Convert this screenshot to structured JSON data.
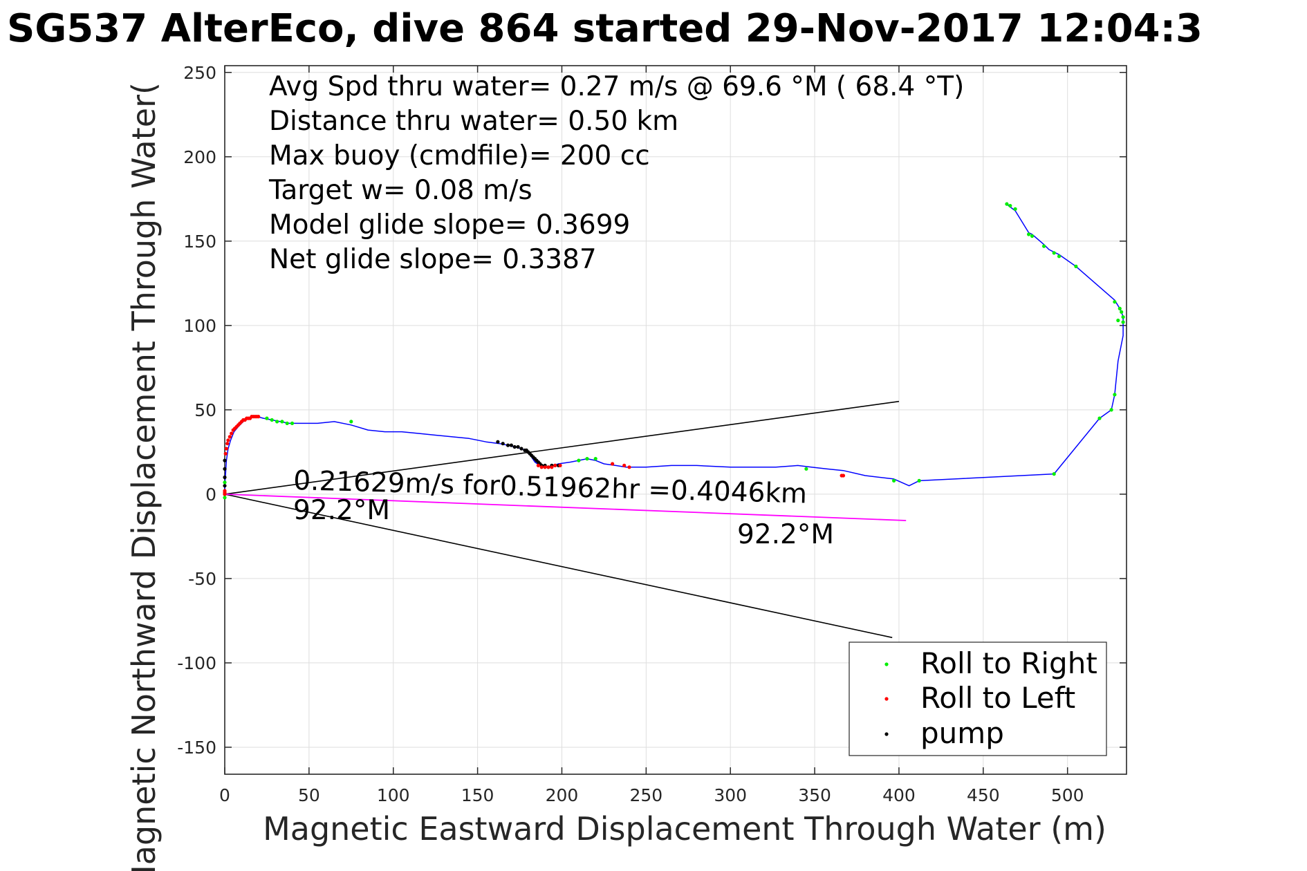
{
  "chart_data": {
    "type": "line",
    "title": "SG537 AlterEco, dive 864 started 29-Nov-2017 12:04:3",
    "xlabel": "Magnetic Eastward Displacement Through Water (m)",
    "ylabel": "Magnetic Northward Displacement Through Water(",
    "xlim": [
      0,
      535
    ],
    "ylim": [
      -166,
      254
    ],
    "xticks": [
      0,
      50,
      100,
      150,
      200,
      250,
      300,
      350,
      400,
      450,
      500
    ],
    "yticks": [
      -150,
      -100,
      -50,
      0,
      50,
      100,
      150,
      200,
      250
    ],
    "grid": true,
    "legend_position": "bottom-right",
    "info_lines": [
      "Avg Spd thru water=  0.27 m/s @  69.6 °M ( 68.4 °T)",
      "Distance thru water=  0.50 km",
      "Max buoy (cmdfile)= 200 cc",
      "Target w= 0.08 m/s",
      "Model glide slope= 0.3699",
      "Net glide slope= 0.3387"
    ],
    "current_labels": {
      "speed_text": "0.21629m/s for0.51962hr =0.4046km",
      "heading_start": "92.2°M",
      "heading_end": "92.2°M"
    },
    "colors": {
      "track": "#0000ff",
      "current": "#ff00ff",
      "cone": "#000000",
      "roll_right": "#00ee00",
      "roll_left": "#ff0000",
      "pump": "#000000",
      "grid": "#dedede"
    },
    "series": [
      {
        "name": "track",
        "x": [
          0,
          0,
          0.5,
          1,
          2,
          3.5,
          5.5,
          8,
          11,
          14,
          17,
          19,
          23,
          28,
          33,
          38,
          45,
          55,
          65,
          75,
          85,
          95,
          105,
          115,
          125,
          135,
          145,
          155,
          163,
          168,
          172,
          176,
          180,
          182,
          184,
          187,
          191,
          195,
          198,
          205,
          210,
          215,
          220,
          225,
          232,
          238,
          250,
          265,
          280,
          300,
          315,
          327,
          340,
          348,
          357,
          367,
          380,
          397,
          406,
          412,
          492,
          519,
          526,
          528,
          530,
          533,
          533,
          532,
          531,
          528,
          505,
          495,
          489,
          486,
          479,
          477,
          469,
          465,
          464
        ],
        "y": [
          0,
          5,
          12,
          20,
          27,
          32,
          37,
          40,
          43,
          45,
          46,
          46,
          45,
          44,
          43,
          42,
          42,
          42,
          43,
          41,
          38,
          37,
          37,
          36,
          35,
          34,
          33,
          31,
          30,
          29,
          28,
          27,
          25,
          22,
          19,
          17,
          16,
          17,
          18,
          19,
          20,
          21,
          20,
          18,
          17,
          16,
          16,
          17,
          17,
          16,
          16,
          16,
          17,
          16,
          15,
          14,
          11,
          9,
          5,
          8,
          12,
          45,
          50,
          59,
          79,
          94,
          105,
          108,
          110,
          115,
          135,
          142,
          145,
          148,
          154,
          155,
          168,
          171,
          173
        ]
      },
      {
        "name": "Roll to Right",
        "x": [
          0,
          0,
          25,
          28,
          31,
          34,
          37,
          40,
          75,
          210,
          215,
          220,
          345,
          397,
          412,
          492,
          519,
          526,
          528,
          530,
          533,
          533,
          532,
          531,
          528,
          505,
          495,
          492,
          486,
          479,
          477,
          469,
          466,
          464
        ],
        "y": [
          -2,
          7,
          45,
          44,
          43,
          43,
          42,
          42,
          43,
          20,
          21,
          21,
          15,
          8,
          8,
          12,
          45,
          50,
          59,
          103,
          102,
          105,
          108,
          110,
          114,
          135,
          141,
          143,
          147,
          153,
          154,
          169,
          171,
          172
        ]
      },
      {
        "name": "Roll to Left",
        "x": [
          0,
          0,
          0,
          0.5,
          1,
          1.5,
          2,
          3,
          4,
          5,
          6,
          7,
          8,
          9,
          10,
          11,
          12,
          13,
          14,
          15,
          16,
          17,
          18,
          19,
          20,
          186,
          188,
          190,
          192,
          194,
          196,
          199,
          230,
          237,
          240,
          366,
          367
        ],
        "y": [
          0,
          1,
          2,
          24,
          27,
          30,
          32,
          34,
          36,
          38,
          39,
          40,
          41,
          42,
          43,
          44,
          44,
          45,
          45,
          45,
          46,
          46,
          46,
          46,
          46,
          17,
          16,
          16,
          16,
          16,
          17,
          17,
          18,
          17,
          16,
          11,
          11
        ]
      },
      {
        "name": "pump",
        "x": [
          0,
          0,
          0,
          0,
          0,
          162,
          165,
          168,
          170,
          172,
          174,
          176,
          178,
          179,
          180,
          181,
          182,
          183,
          184,
          185,
          186,
          187,
          188,
          190,
          192,
          194,
          196,
          198
        ],
        "y": [
          0,
          5,
          10,
          15,
          20,
          31,
          30,
          29,
          29,
          28,
          28,
          27,
          26,
          26,
          25,
          24,
          23,
          22,
          21,
          20,
          19,
          18,
          17,
          17,
          16,
          17,
          17,
          17
        ]
      },
      {
        "name": "current",
        "x": [
          0,
          404.2
        ],
        "y": [
          0,
          -15.6
        ]
      },
      {
        "name": "cone",
        "x": [
          400,
          0,
          396
        ],
        "y": [
          55,
          0,
          -85
        ]
      }
    ]
  }
}
